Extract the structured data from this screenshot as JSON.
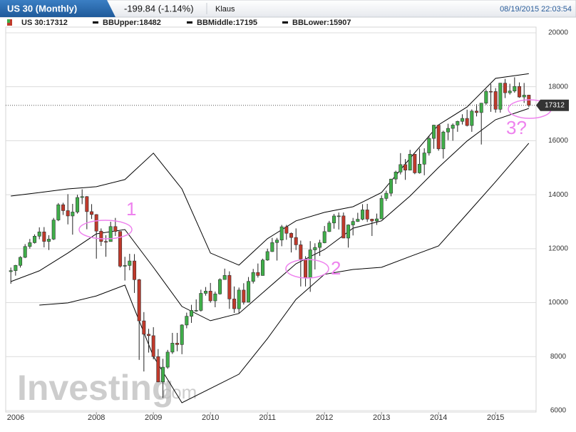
{
  "header": {
    "symbol": "US 30 (Monthly)",
    "change": "-199.84 (-1.14%)",
    "user": "Klaus",
    "timestamp": "08/19/2015 22:03:54"
  },
  "watermark": {
    "brand": "Investing",
    "suffix": ".com"
  },
  "chart_data": {
    "type": "candlestick",
    "legend": [
      "US 30:17312",
      "BBUpper:18482",
      "BBMiddle:17195",
      "BBLower:15907"
    ],
    "up_color": "#3fae49",
    "down_color": "#c0392b",
    "band_color": "#000000",
    "xlim": [
      2006.41,
      2015.71
    ],
    "ylim": [
      5630,
      20210
    ],
    "xticks": [
      {
        "value": 2006,
        "label": "2006"
      },
      2008,
      2009,
      2010,
      2011,
      2012,
      2013,
      2014,
      2015
    ],
    "yticks": [
      6000,
      8000,
      10000,
      12000,
      14000,
      16000,
      18000,
      20000
    ],
    "grid": true,
    "last_price": 17312,
    "x": [
      2006.5,
      2006.583,
      2006.667,
      2006.75,
      2006.833,
      2006.917,
      2007,
      2007.083,
      2007.167,
      2007.25,
      2007.333,
      2007.417,
      2007.5,
      2007.583,
      2007.667,
      2007.75,
      2007.833,
      2007.917,
      2008,
      2008.083,
      2008.167,
      2008.25,
      2008.333,
      2008.417,
      2008.5,
      2008.583,
      2008.667,
      2008.75,
      2008.833,
      2008.917,
      2009,
      2009.083,
      2009.167,
      2009.25,
      2009.333,
      2009.417,
      2009.5,
      2009.583,
      2009.667,
      2009.75,
      2009.833,
      2009.917,
      2010,
      2010.083,
      2010.167,
      2010.25,
      2010.333,
      2010.417,
      2010.5,
      2010.583,
      2010.667,
      2010.75,
      2010.833,
      2010.917,
      2011,
      2011.083,
      2011.167,
      2011.25,
      2011.333,
      2011.417,
      2011.5,
      2011.583,
      2011.667,
      2011.75,
      2011.833,
      2011.917,
      2012,
      2012.083,
      2012.167,
      2012.25,
      2012.333,
      2012.417,
      2012.5,
      2012.583,
      2012.667,
      2012.75,
      2012.833,
      2012.917,
      2013,
      2013.083,
      2013.167,
      2013.25,
      2013.333,
      2013.417,
      2013.5,
      2013.583,
      2013.667,
      2013.75,
      2013.833,
      2013.917,
      2014,
      2014.083,
      2014.167,
      2014.25,
      2014.333,
      2014.417,
      2014.5,
      2014.583,
      2014.667,
      2014.75,
      2014.833,
      2014.917,
      2015,
      2015.083,
      2015.167,
      2015.25,
      2015.333,
      2015.417,
      2015.5,
      2015.583
    ],
    "open": [
      11150,
      11186,
      11381,
      11679,
      12081,
      12222,
      12463,
      12622,
      12269,
      12354,
      13063,
      13628,
      13409,
      13212,
      13358,
      13896,
      13930,
      13372,
      13265,
      12650,
      12266,
      12263,
      12820,
      12638,
      11350,
      11378,
      11544,
      10851,
      9325,
      8829,
      8776,
      8001,
      7063,
      7609,
      8168,
      8500,
      8447,
      9172,
      9496,
      9712,
      9713,
      10345,
      10428,
      10067,
      10325,
      10857,
      11009,
      10137,
      9774,
      10466,
      10015,
      10788,
      11118,
      11006,
      11578,
      11892,
      12226,
      12320,
      12811,
      12570,
      12414,
      12143,
      11614,
      10913,
      11955,
      12046,
      12218,
      12633,
      12952,
      13212,
      13214,
      12393,
      12880,
      13009,
      13091,
      13437,
      13096,
      13026,
      13104,
      13861,
      14054,
      14579,
      14840,
      15116,
      14910,
      15500,
      14810,
      15130,
      15546,
      16086,
      16577,
      15699,
      16322,
      16458,
      16581,
      16717,
      16827,
      16563,
      17098,
      17043,
      17391,
      17828,
      17823,
      17165,
      18133,
      17776,
      17841,
      18011,
      17620,
      17690
    ],
    "high": [
      11300,
      11400,
      11720,
      12170,
      12360,
      12530,
      12790,
      12800,
      12500,
      13140,
      13690,
      13700,
      14020,
      13660,
      14000,
      14200,
      13950,
      13650,
      13280,
      12750,
      12500,
      13000,
      13140,
      12640,
      11700,
      11810,
      11800,
      10880,
      9650,
      9030,
      9090,
      8280,
      7920,
      8250,
      8880,
      8880,
      9200,
      9630,
      9920,
      10120,
      10480,
      10580,
      10730,
      10410,
      10900,
      11260,
      11160,
      10600,
      10560,
      10720,
      10950,
      11250,
      11450,
      11630,
      12000,
      12400,
      12400,
      12880,
      12880,
      12600,
      12750,
      12300,
      11720,
      12280,
      12200,
      12330,
      12840,
      13030,
      13290,
      13340,
      13340,
      12900,
      13140,
      13330,
      13650,
      13660,
      13110,
      13300,
      13970,
      14150,
      14590,
      14890,
      15540,
      15320,
      15660,
      15500,
      15710,
      15720,
      16170,
      16590,
      16590,
      16370,
      16630,
      16640,
      16740,
      16980,
      17150,
      17160,
      17350,
      17400,
      17900,
      18100,
      17950,
      18140,
      18290,
      18110,
      18350,
      18160,
      18140,
      17700
    ],
    "low": [
      10700,
      11000,
      11300,
      11650,
      12000,
      12190,
      12350,
      12050,
      11950,
      12320,
      13020,
      13250,
      12900,
      12520,
      13300,
      13650,
      12720,
      13100,
      11630,
      12100,
      11700,
      12260,
      12470,
      11300,
      10820,
      11200,
      10360,
      7880,
      7450,
      8150,
      7900,
      7050,
      6470,
      7550,
      8100,
      8200,
      8090,
      9050,
      9250,
      9660,
      9670,
      10260,
      10000,
      9830,
      10300,
      10850,
      9770,
      9620,
      9610,
      9930,
      10010,
      10710,
      10930,
      11000,
      11550,
      11880,
      11560,
      12090,
      12330,
      11860,
      11950,
      10600,
      10600,
      10400,
      11230,
      11730,
      12200,
      12620,
      12740,
      12710,
      12390,
      12040,
      12490,
      12990,
      13050,
      12990,
      12470,
      12880,
      13100,
      13770,
      13940,
      14400,
      14750,
      14550,
      14900,
      14760,
      14780,
      14720,
      15450,
      15700,
      15630,
      15340,
      16020,
      16000,
      16330,
      16600,
      16530,
      16330,
      16900,
      15860,
      17330,
      17070,
      17040,
      17040,
      17580,
      17710,
      17780,
      17590,
      17400,
      17240
    ],
    "close": [
      11186,
      11381,
      11679,
      12081,
      12222,
      12463,
      12622,
      12269,
      12354,
      13063,
      13628,
      13409,
      13212,
      13358,
      13896,
      13930,
      13372,
      13265,
      12650,
      12266,
      12263,
      12820,
      12638,
      11350,
      11378,
      11544,
      10851,
      9325,
      8829,
      8776,
      8001,
      7063,
      7609,
      8168,
      8500,
      8447,
      9172,
      9496,
      9712,
      9713,
      10345,
      10428,
      10067,
      10325,
      10857,
      11009,
      10137,
      9774,
      10466,
      10015,
      10788,
      11118,
      11006,
      11578,
      11892,
      12226,
      12320,
      12811,
      12570,
      12414,
      12143,
      11614,
      10913,
      11955,
      12046,
      12218,
      12633,
      12952,
      13212,
      13214,
      12393,
      12880,
      13009,
      13091,
      13437,
      13096,
      13026,
      13104,
      13861,
      14054,
      14579,
      14840,
      15116,
      14910,
      15500,
      14810,
      15130,
      15546,
      16086,
      16577,
      15699,
      16322,
      16458,
      16581,
      16717,
      16827,
      16563,
      17098,
      17043,
      17391,
      17828,
      17823,
      17165,
      18133,
      17776,
      17841,
      18011,
      17620,
      17690,
      17312
    ],
    "bands": {
      "x": [
        2006.5,
        2007,
        2007.5,
        2008,
        2008.5,
        2009,
        2009.5,
        2010,
        2010.5,
        2011,
        2011.5,
        2012,
        2012.5,
        2013,
        2013.5,
        2014,
        2014.5,
        2015,
        2015.583
      ],
      "upper": [
        13950,
        14080,
        14215,
        14295,
        14560,
        15540,
        14215,
        11840,
        11390,
        12370,
        13030,
        13345,
        13555,
        14080,
        15350,
        16590,
        17250,
        18310,
        18482
      ],
      "middle": [
        10780,
        11180,
        11840,
        12550,
        12710,
        11310,
        9860,
        9330,
        9600,
        10520,
        11440,
        11970,
        12760,
        13030,
        13950,
        15010,
        15990,
        16780,
        17195
      ],
      "lower": [
        null,
        9910,
        9990,
        10250,
        10650,
        8010,
        6290,
        6820,
        7350,
        8670,
        10120,
        11050,
        11230,
        11310,
        11710,
        12100,
        13290,
        14480,
        15907
      ]
    },
    "annotations": [
      "1",
      "2",
      "3?"
    ]
  }
}
